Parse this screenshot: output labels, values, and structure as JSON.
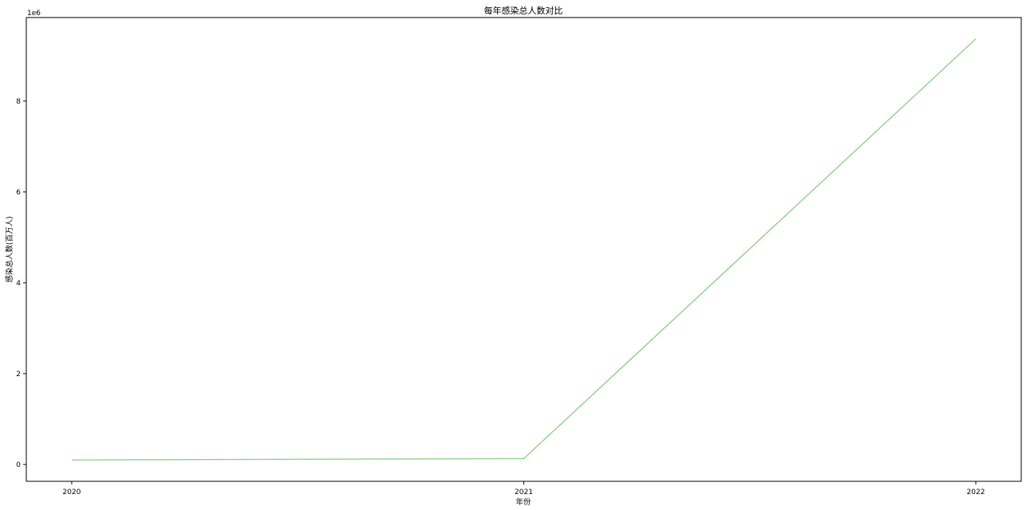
{
  "chart_data": {
    "type": "line",
    "title": "每年感染总人数对比",
    "xlabel": "年份",
    "ylabel": "感染总人数(百万人)",
    "y_offset_label": "1e6",
    "categories": [
      "2020",
      "2021",
      "2022"
    ],
    "series": [
      {
        "color": "#8fd18a",
        "values": [
          100000,
          130000,
          9370000
        ]
      }
    ],
    "y_ticks": [
      0,
      2,
      4,
      6,
      8
    ],
    "y_tick_scale": 1000000,
    "ylim": [
      -370000,
      9840000
    ],
    "grid": false,
    "legend": "none"
  }
}
